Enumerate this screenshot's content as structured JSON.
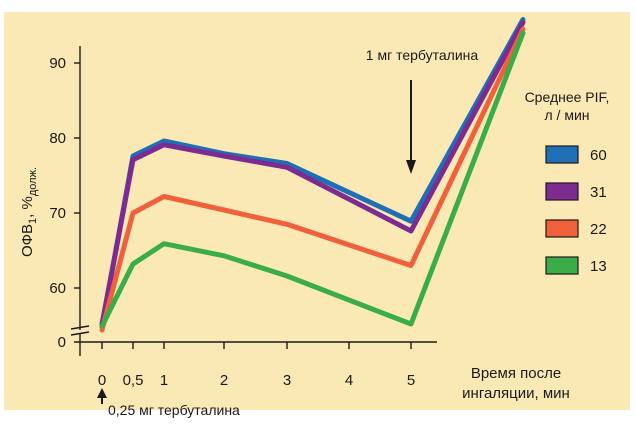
{
  "chart_data": {
    "type": "line",
    "background": "#fbe9b5",
    "x": [
      0,
      0.5,
      1,
      2,
      3,
      5,
      7
    ],
    "x_ticks": [
      "0",
      "0,5",
      "1",
      "2",
      "3",
      "4",
      "5"
    ],
    "x_tick_values": [
      0,
      0.5,
      1,
      2,
      3,
      4,
      5
    ],
    "y_ticks": [
      "90",
      "80",
      "70",
      "60",
      "0"
    ],
    "y_tick_values": [
      90,
      80,
      70,
      60
    ],
    "xlabel_line1": "Время после",
    "xlabel_line2": "ингаляции, мин",
    "ylabel_main": "ОФВ",
    "ylabel_sub1": "1",
    "ylabel_mid": ", %",
    "ylabel_sub2": "долж.",
    "ylim": [
      54,
      96
    ],
    "xlim": [
      0,
      7
    ],
    "axis_break": true,
    "legend_title_line1": "Среднее PIF,",
    "legend_title_line2": "л / мин",
    "annotation_top": "1 мг тербуталина",
    "annotation_top_x": 5,
    "annotation_bottom": "0,25 мг тербуталина",
    "annotation_bottom_x": 0,
    "series": [
      {
        "name": "60",
        "color": "#1f6fb5",
        "values": [
          54.8,
          77.6,
          79.6,
          77.9,
          76.6,
          68.9,
          95.8
        ]
      },
      {
        "name": "31",
        "color": "#7d2a91",
        "values": [
          55.2,
          77.1,
          79.1,
          77.6,
          76.1,
          67.6,
          95.4
        ]
      },
      {
        "name": "22",
        "color": "#f0603a",
        "values": [
          54.4,
          70.0,
          72.2,
          70.4,
          68.5,
          63.0,
          94.5
        ]
      },
      {
        "name": "13",
        "color": "#3aad48",
        "values": [
          54.9,
          63.2,
          65.9,
          64.3,
          61.6,
          55.2,
          94.0
        ]
      }
    ]
  }
}
